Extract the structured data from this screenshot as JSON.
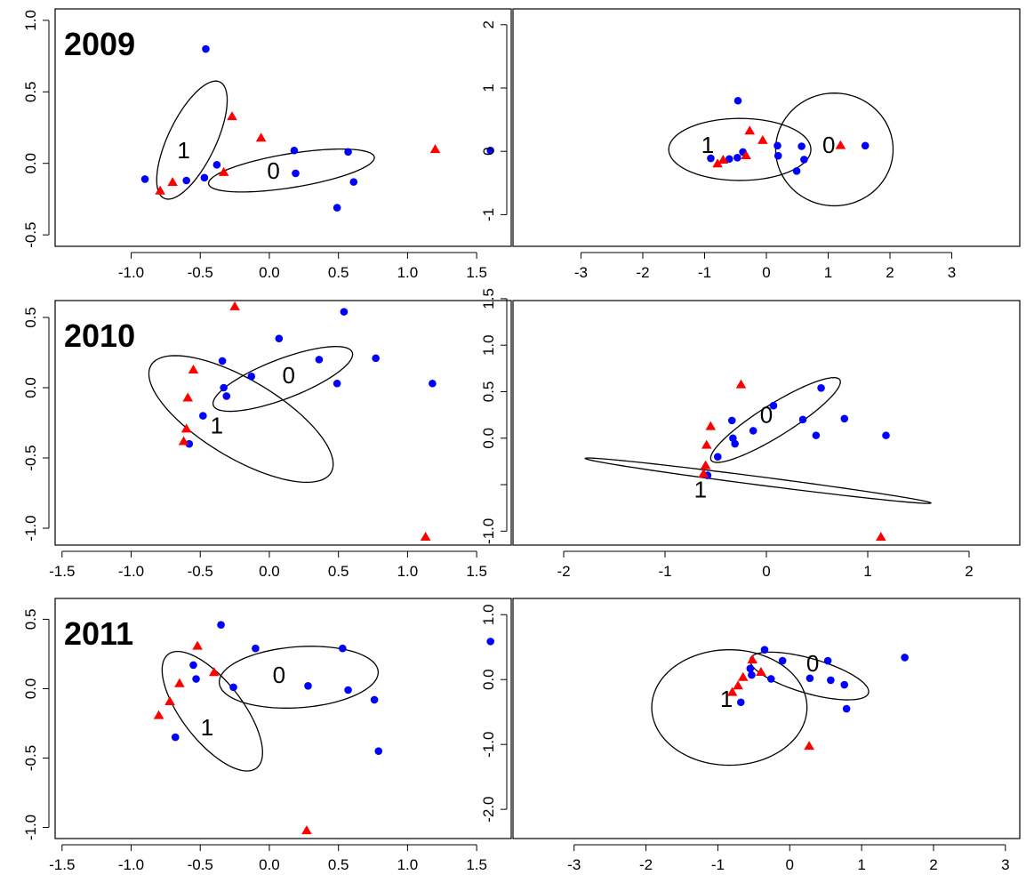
{
  "colors": {
    "group0": "#0000ff",
    "group1": "#ff0000",
    "axis": "#000000"
  },
  "chart_data": [
    {
      "type": "scatter",
      "row": 0,
      "col": 0,
      "panel_label": "2009",
      "xlim": [
        -1.55,
        1.75
      ],
      "ylim": [
        -0.58,
        1.08
      ],
      "xticks": [
        -1.0,
        -0.5,
        0.0,
        0.5,
        1.0,
        1.5
      ],
      "xticklabels": [
        "-1.0",
        "-0.5",
        "0.0",
        "0.5",
        "1.0",
        "1.5"
      ],
      "yticks": [
        -0.5,
        0.0,
        0.5,
        1.0
      ],
      "yticklabels": [
        "-0.5",
        "0.0",
        "0.5",
        "1.0"
      ],
      "series": [
        {
          "marker": "circle",
          "color": "#0000ff",
          "x": [
            -0.9,
            -0.6,
            -0.47,
            -0.46,
            -0.38,
            0.18,
            0.19,
            0.49,
            0.57,
            0.61,
            1.6
          ],
          "y": [
            -0.11,
            -0.12,
            -0.1,
            0.8,
            -0.01,
            0.09,
            -0.07,
            -0.31,
            0.08,
            -0.13,
            0.09
          ]
        },
        {
          "marker": "triangle",
          "color": "#ff0000",
          "x": [
            -0.79,
            -0.7,
            -0.33,
            -0.27,
            -0.06,
            1.2
          ],
          "y": [
            -0.19,
            -0.13,
            -0.06,
            0.33,
            0.18,
            0.1
          ]
        }
      ],
      "ellipses": [
        {
          "label": "1",
          "cx": -0.59,
          "cy": 0.16,
          "points": [
            [
              -0.64,
              -0.23
            ],
            [
              -0.42,
              0.56
            ],
            [
              -0.82,
              0.04
            ],
            [
              -0.36,
              0.28
            ]
          ]
        },
        {
          "label": "0",
          "cx": 0.16,
          "cy": -0.05,
          "points": [
            [
              -0.44,
              -0.14
            ],
            [
              0.76,
              0.04
            ],
            [
              0.16,
              0.07
            ],
            [
              0.16,
              -0.17
            ]
          ]
        }
      ],
      "ellipse_labels": [
        {
          "text": "1",
          "x": -0.62,
          "y": 0.09
        },
        {
          "text": "0",
          "x": 0.03,
          "y": -0.05
        }
      ]
    },
    {
      "type": "scatter",
      "row": 0,
      "col": 1,
      "xlim": [
        -4.1,
        4.1
      ],
      "ylim": [
        -1.5,
        2.25
      ],
      "xticks": [
        -3,
        -2,
        -1,
        0,
        1,
        2,
        3
      ],
      "xticklabels": [
        "-3",
        "-2",
        "-1",
        "0",
        "1",
        "2",
        "3"
      ],
      "yticks": [
        -1,
        0,
        1,
        2
      ],
      "yticklabels": [
        "-1",
        "0",
        "1",
        "2"
      ],
      "series": [
        {
          "marker": "circle",
          "color": "#0000ff",
          "x": [
            -0.9,
            -0.6,
            -0.47,
            -0.46,
            -0.38,
            0.18,
            0.19,
            0.49,
            0.57,
            0.61,
            1.6
          ],
          "y": [
            -0.11,
            -0.12,
            -0.1,
            0.8,
            -0.01,
            0.09,
            -0.07,
            -0.31,
            0.08,
            -0.13,
            0.09
          ]
        },
        {
          "marker": "triangle",
          "color": "#ff0000",
          "x": [
            -0.79,
            -0.7,
            -0.33,
            -0.27,
            -0.06,
            1.2
          ],
          "y": [
            -0.19,
            -0.13,
            -0.06,
            0.33,
            0.18,
            0.1
          ]
        }
      ],
      "ellipses": [
        {
          "label": "1",
          "cx": -0.43,
          "cy": 0.03,
          "points": [
            [
              -1.58,
              0.03
            ],
            [
              0.72,
              0.03
            ],
            [
              -0.43,
              0.52
            ],
            [
              -0.43,
              -0.46
            ]
          ]
        },
        {
          "label": "0",
          "cx": 1.1,
          "cy": 0.03,
          "points": [
            [
              0.15,
              0.03
            ],
            [
              2.05,
              0.03
            ],
            [
              1.1,
              0.92
            ],
            [
              1.1,
              -0.86
            ]
          ]
        }
      ],
      "ellipse_labels": [
        {
          "text": "1",
          "x": -0.95,
          "y": 0.1
        },
        {
          "text": "0",
          "x": 1.01,
          "y": 0.1
        }
      ]
    },
    {
      "type": "scatter",
      "row": 1,
      "col": 0,
      "panel_label": "2010",
      "xlim": [
        -1.55,
        1.75
      ],
      "ylim": [
        -1.12,
        0.62
      ],
      "xticks": [
        -1.5,
        -1.0,
        -0.5,
        0.0,
        0.5,
        1.0,
        1.5
      ],
      "xticklabels": [
        "-1.5",
        "-1.0",
        "-0.5",
        "0.0",
        "0.5",
        "1.0",
        "1.5"
      ],
      "yticks": [
        -1.0,
        -0.5,
        0.0,
        0.5
      ],
      "yticklabels": [
        "-1.0",
        "-0.5",
        "0.0",
        "0.5"
      ],
      "series": [
        {
          "marker": "circle",
          "color": "#0000ff",
          "x": [
            -0.58,
            -0.48,
            -0.34,
            -0.33,
            -0.31,
            -0.13,
            0.07,
            0.36,
            0.49,
            0.54,
            0.77,
            1.18
          ],
          "y": [
            -0.4,
            -0.2,
            0.19,
            0.0,
            -0.06,
            0.08,
            0.35,
            0.2,
            0.03,
            0.54,
            0.21,
            0.03
          ]
        },
        {
          "marker": "triangle",
          "color": "#ff0000",
          "x": [
            -0.62,
            -0.6,
            -0.59,
            -0.55,
            -0.25,
            1.13
          ],
          "y": [
            -0.38,
            -0.29,
            -0.07,
            0.13,
            0.58,
            -1.06
          ]
        }
      ],
      "ellipses": [
        {
          "label": "1",
          "cx": -0.2,
          "cy": -0.22,
          "points": [
            [
              -0.86,
              0.15
            ],
            [
              0.45,
              -0.6
            ],
            [
              -0.08,
              0.03
            ],
            [
              -0.33,
              -0.47
            ]
          ]
        },
        {
          "label": "0",
          "cx": 0.1,
          "cy": 0.1,
          "points": [
            [
              -0.41,
              -0.15
            ],
            [
              0.6,
              0.2
            ],
            [
              0.1,
              0.25
            ],
            [
              0.1,
              -0.05
            ]
          ]
        }
      ],
      "ellipse_labels": [
        {
          "text": "1",
          "x": -0.38,
          "y": -0.27
        },
        {
          "text": "0",
          "x": 0.14,
          "y": 0.09
        }
      ]
    },
    {
      "type": "scatter",
      "row": 1,
      "col": 1,
      "xlim": [
        -2.5,
        2.5
      ],
      "ylim": [
        -1.15,
        1.48
      ],
      "xticks": [
        -2,
        -1,
        0,
        1,
        2
      ],
      "xticklabels": [
        "-2",
        "-1",
        "0",
        "1",
        "2"
      ],
      "yticks": [
        -1.0,
        -0.5,
        0.0,
        0.5,
        1.0,
        1.5
      ],
      "yticklabels": [
        "-1.0",
        "",
        "0.0",
        "0.5",
        "1.0",
        "1.5"
      ],
      "series": [
        {
          "marker": "circle",
          "color": "#0000ff",
          "x": [
            -0.58,
            -0.48,
            -0.34,
            -0.33,
            -0.31,
            -0.13,
            0.07,
            0.36,
            0.49,
            0.54,
            0.77,
            1.18
          ],
          "y": [
            -0.4,
            -0.2,
            0.19,
            0.0,
            -0.06,
            0.08,
            0.35,
            0.2,
            0.03,
            0.54,
            0.21,
            0.03
          ]
        },
        {
          "marker": "triangle",
          "color": "#ff0000",
          "x": [
            -0.62,
            -0.6,
            -0.59,
            -0.55,
            -0.25,
            1.13
          ],
          "y": [
            -0.38,
            -0.29,
            -0.07,
            0.13,
            0.58,
            -1.06
          ]
        }
      ],
      "ellipses": [
        {
          "label": "1",
          "cx": -0.08,
          "cy": -0.45,
          "points": [
            [
              -1.79,
              -0.22
            ],
            [
              1.62,
              -0.7
            ],
            [
              -0.08,
              -0.41
            ],
            [
              -0.08,
              -0.5
            ]
          ]
        },
        {
          "label": "0",
          "cx": 0.09,
          "cy": 0.2,
          "points": [
            [
              -0.55,
              -0.22
            ],
            [
              0.73,
              0.6
            ],
            [
              0.09,
              0.4
            ],
            [
              0.09,
              0.0
            ]
          ]
        }
      ],
      "ellipse_labels": [
        {
          "text": "1",
          "x": -0.65,
          "y": -0.55
        },
        {
          "text": "0",
          "x": 0.0,
          "y": 0.25
        }
      ]
    },
    {
      "type": "scatter",
      "row": 2,
      "col": 0,
      "panel_label": "2011",
      "xlim": [
        -1.55,
        1.75
      ],
      "ylim": [
        -1.08,
        0.65
      ],
      "xticks": [
        -1.5,
        -1.0,
        -0.5,
        0.0,
        0.5,
        1.0,
        1.5
      ],
      "xticklabels": [
        "-1.5",
        "-1.0",
        "-0.5",
        "0.0",
        "0.5",
        "1.0",
        "1.5"
      ],
      "yticks": [
        -1.0,
        -0.5,
        0.0,
        0.5
      ],
      "yticklabels": [
        "-1.0",
        "-0.5",
        "0.0",
        "0.5"
      ],
      "series": [
        {
          "marker": "circle",
          "color": "#0000ff",
          "x": [
            -0.68,
            -0.55,
            -0.53,
            -0.35,
            -0.26,
            -0.1,
            0.28,
            0.53,
            0.57,
            0.76,
            0.79,
            1.6
          ],
          "y": [
            -0.35,
            0.17,
            0.07,
            0.46,
            0.01,
            0.29,
            0.02,
            0.29,
            -0.01,
            -0.08,
            -0.45,
            0.34
          ]
        },
        {
          "marker": "triangle",
          "color": "#ff0000",
          "x": [
            -0.8,
            -0.72,
            -0.65,
            -0.52,
            -0.4,
            0.27
          ],
          "y": [
            -0.19,
            -0.09,
            0.04,
            0.31,
            0.12,
            -1.02
          ]
        }
      ],
      "ellipses": [
        {
          "label": "1",
          "cx": -0.45,
          "cy": -0.15,
          "points": [
            [
              -0.58,
              0.25
            ],
            [
              -0.17,
              -0.6
            ],
            [
              -0.75,
              -0.08
            ],
            [
              -0.15,
              -0.22
            ]
          ]
        },
        {
          "label": "0",
          "cx": 0.2,
          "cy": 0.08,
          "points": [
            [
              -0.35,
              0.05
            ],
            [
              0.8,
              0.12
            ],
            [
              0.2,
              0.3
            ],
            [
              0.2,
              -0.14
            ]
          ]
        }
      ],
      "ellipse_labels": [
        {
          "text": "1",
          "x": -0.45,
          "y": -0.28
        },
        {
          "text": "0",
          "x": 0.07,
          "y": 0.1
        }
      ]
    },
    {
      "type": "scatter",
      "row": 2,
      "col": 1,
      "xlim": [
        -3.85,
        3.2
      ],
      "ylim": [
        -2.45,
        1.25
      ],
      "xticks": [
        -3,
        -2,
        -1,
        0,
        1,
        2,
        3
      ],
      "xticklabels": [
        "-3",
        "-2",
        "-1",
        "0",
        "1",
        "2",
        "3"
      ],
      "yticks": [
        -2.0,
        -1.0,
        0.0,
        1.0
      ],
      "yticklabels": [
        "-2.0",
        "-1.0",
        "0.0",
        "1.0"
      ],
      "series": [
        {
          "marker": "circle",
          "color": "#0000ff",
          "x": [
            -0.68,
            -0.55,
            -0.53,
            -0.35,
            -0.26,
            -0.1,
            0.28,
            0.53,
            0.57,
            0.76,
            0.79,
            1.6
          ],
          "y": [
            -0.35,
            0.17,
            0.07,
            0.46,
            0.01,
            0.29,
            0.02,
            0.29,
            -0.01,
            -0.08,
            -0.45,
            0.34
          ]
        },
        {
          "marker": "triangle",
          "color": "#ff0000",
          "x": [
            -0.8,
            -0.72,
            -0.65,
            -0.52,
            -0.4,
            0.27
          ],
          "y": [
            -0.19,
            -0.09,
            0.04,
            0.31,
            0.12,
            -1.02
          ]
        }
      ],
      "ellipses": [
        {
          "label": "1",
          "cx": -0.84,
          "cy": -0.43,
          "points": [
            [
              -1.92,
              -0.43
            ],
            [
              0.24,
              -0.43
            ],
            [
              -0.84,
              0.46
            ],
            [
              -0.84,
              -1.32
            ]
          ]
        },
        {
          "label": "0",
          "cx": 0.17,
          "cy": 0.11,
          "points": [
            [
              -0.45,
              0.25
            ],
            [
              1.2,
              -0.25
            ],
            [
              0.2,
              0.38
            ],
            [
              0.14,
              -0.16
            ]
          ]
        }
      ],
      "ellipse_labels": [
        {
          "text": "1",
          "x": -0.88,
          "y": -0.3
        },
        {
          "text": "0",
          "x": 0.32,
          "y": 0.25
        }
      ]
    }
  ]
}
